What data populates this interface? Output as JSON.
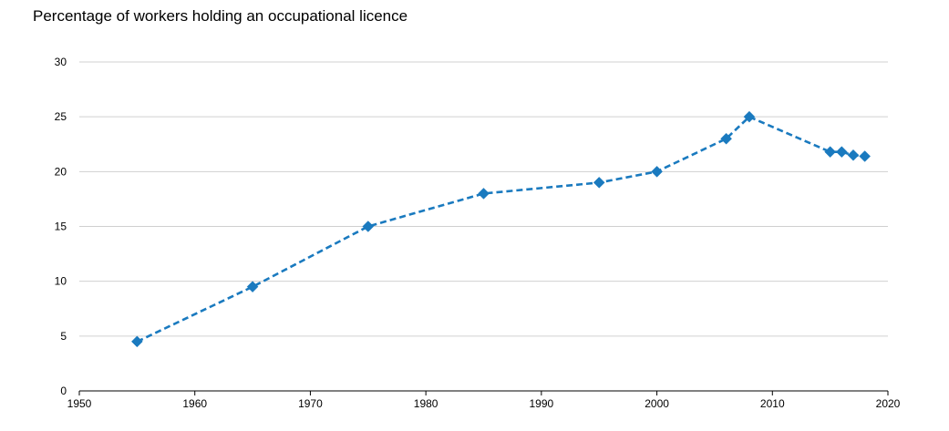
{
  "chart_data": {
    "type": "line",
    "title": "Percentage of workers holding an occupational licence",
    "xlabel": "",
    "ylabel": "",
    "xlim": [
      1950,
      2020
    ],
    "ylim": [
      0,
      30
    ],
    "x_ticks": [
      "1950",
      "1960",
      "1970",
      "1980",
      "1990",
      "2000",
      "2010",
      "2020"
    ],
    "y_ticks": [
      "0",
      "5",
      "10",
      "15",
      "20",
      "25",
      "30"
    ],
    "grid": "horizontal",
    "legend": "none",
    "series": [
      {
        "color": "#1a7abf",
        "line_style": "dashed",
        "marker": "diamond",
        "x": [
          1955,
          1965,
          1975,
          1985,
          1995,
          2000,
          2006,
          2008,
          2015,
          2016,
          2017,
          2018
        ],
        "values": [
          4.5,
          9.5,
          15,
          18,
          19,
          20,
          23,
          25,
          21.8,
          21.8,
          21.5,
          21.4
        ]
      }
    ]
  }
}
